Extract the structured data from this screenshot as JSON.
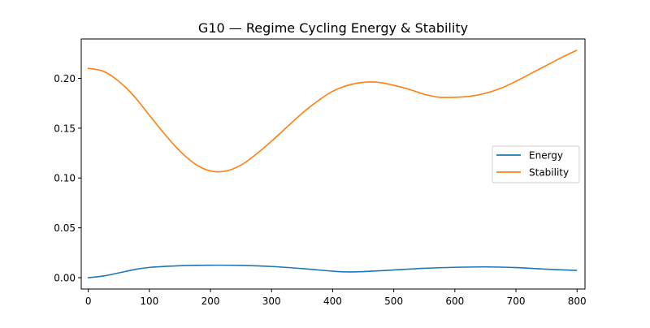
{
  "chart_data": {
    "type": "line",
    "title": "G10 — Regime Cycling Energy & Stability",
    "xlabel": "",
    "ylabel": "",
    "xlim": [
      -11.5,
      813
    ],
    "ylim": [
      -0.0114,
      0.2395
    ],
    "xticks": [
      0,
      100,
      200,
      300,
      400,
      500,
      600,
      700,
      800
    ],
    "yticks": [
      0.0,
      0.05,
      0.1,
      0.15,
      0.2
    ],
    "ytick_labels": [
      "0.00",
      "0.05",
      "0.10",
      "0.15",
      "0.20"
    ],
    "grid": false,
    "legend_position": "center-right",
    "series": [
      {
        "name": "Energy",
        "color": "#1f77b4",
        "x": [
          0,
          25,
          50,
          75,
          100,
          150,
          200,
          250,
          300,
          350,
          400,
          425,
          450,
          500,
          550,
          600,
          650,
          700,
          750,
          799
        ],
        "y": [
          0.0,
          0.0017,
          0.0048,
          0.008,
          0.0103,
          0.012,
          0.0125,
          0.0123,
          0.0112,
          0.0091,
          0.0065,
          0.0058,
          0.0061,
          0.0077,
          0.0094,
          0.0104,
          0.0108,
          0.0101,
          0.0085,
          0.0073
        ]
      },
      {
        "name": "Stability",
        "color": "#ff7f0e",
        "x": [
          0,
          25,
          50,
          75,
          100,
          125,
          150,
          175,
          200,
          225,
          250,
          275,
          300,
          325,
          350,
          375,
          400,
          425,
          450,
          475,
          500,
          525,
          550,
          575,
          600,
          625,
          650,
          675,
          700,
          725,
          750,
          775,
          799
        ],
        "y": [
          0.21,
          0.207,
          0.197,
          0.182,
          0.163,
          0.144,
          0.127,
          0.114,
          0.107,
          0.107,
          0.113,
          0.124,
          0.137,
          0.151,
          0.165,
          0.177,
          0.187,
          0.193,
          0.196,
          0.196,
          0.193,
          0.189,
          0.184,
          0.181,
          0.181,
          0.182,
          0.185,
          0.19,
          0.197,
          0.205,
          0.213,
          0.221,
          0.228
        ]
      }
    ]
  }
}
